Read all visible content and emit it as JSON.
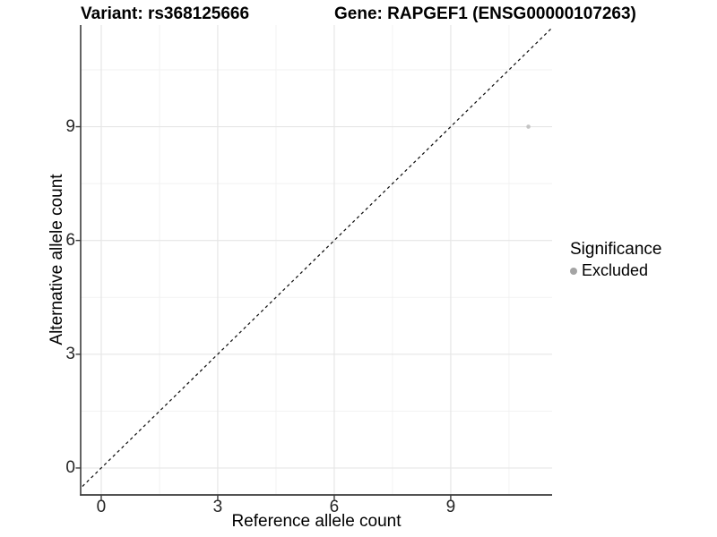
{
  "titles": {
    "variant": "Variant: rs368125666",
    "gene": "Gene: RAPGEF1 (ENSG00000107263)"
  },
  "axes": {
    "x_label": "Reference allele count",
    "y_label": "Alternative allele count"
  },
  "legend": {
    "title": "Significance",
    "items": [
      {
        "label": "Excluded",
        "color": "#a4a4a4"
      }
    ]
  },
  "chart_data": {
    "type": "scatter",
    "title_left": "Variant: rs368125666",
    "title_right": "Gene: RAPGEF1 (ENSG00000107263)",
    "xlabel": "Reference allele count",
    "ylabel": "Alternative allele count",
    "points": [
      {
        "x": 11,
        "y": 9,
        "series": "Excluded",
        "color": "#c4c4c4"
      }
    ],
    "reference_line": {
      "type": "identity-diagonal",
      "style": "dashed",
      "color": "#000000"
    },
    "x_ticks": [
      0,
      3,
      6,
      9
    ],
    "y_ticks": [
      0,
      3,
      6,
      9
    ],
    "x_minor_ticks": [
      1.5,
      4.5,
      7.5,
      10.5
    ],
    "y_minor_ticks": [
      1.5,
      4.5,
      7.5,
      10.5
    ],
    "xlim": [
      -0.53,
      11.61
    ],
    "ylim": [
      -0.71,
      11.68
    ],
    "grid": true,
    "legend_position": "right",
    "legend_title": "Significance",
    "legend_entries": [
      "Excluded"
    ],
    "colors": {
      "grid_major": "#e6e6e6",
      "grid_minor": "#f2f2f2",
      "axis_line": "#3c3c3c",
      "tick_mark": "#3c3c3c",
      "tick_text": "#262626",
      "point": "#c4c4c4",
      "legend_dot": "#a4a4a4",
      "dashed_line": "#111111"
    }
  }
}
